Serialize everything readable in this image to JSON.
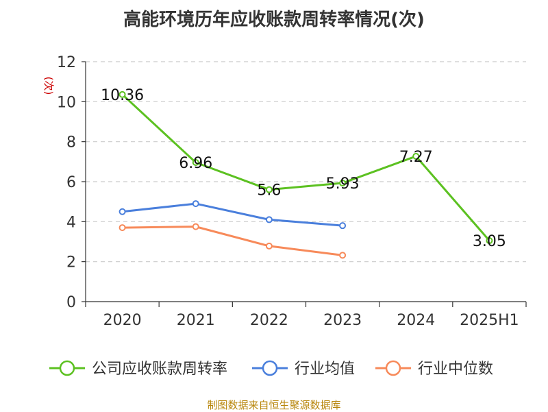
{
  "title": "高能环境历年应收账款周转率情况(次)",
  "source": "制图数据来自恒生聚源数据库",
  "chart_data": {
    "type": "line",
    "title": "高能环境历年应收账款周转率情况(次)",
    "ylabel": "(次)",
    "xlabel": "",
    "categories": [
      "2020",
      "2021",
      "2022",
      "2023",
      "2024",
      "2025H1"
    ],
    "ylim": [
      0,
      12
    ],
    "yticks": [
      0,
      2,
      4,
      6,
      8,
      10,
      12
    ],
    "grid": true,
    "legend_position": "bottom",
    "series": [
      {
        "name": "公司应收账款周转率",
        "color": "#5cc121",
        "values": [
          10.36,
          6.96,
          5.6,
          5.93,
          7.27,
          3.05
        ],
        "show_labels": true,
        "labels": [
          "10.36",
          "6.96",
          "5.6",
          "5.93",
          "7.27",
          "3.05"
        ]
      },
      {
        "name": "行业均值",
        "color": "#4a7fdc",
        "values": [
          4.5,
          4.9,
          4.1,
          3.8,
          null,
          null
        ],
        "show_labels": false
      },
      {
        "name": "行业中位数",
        "color": "#f78a5a",
        "values": [
          3.7,
          3.75,
          2.78,
          2.32,
          null,
          null
        ],
        "show_labels": false
      }
    ]
  }
}
